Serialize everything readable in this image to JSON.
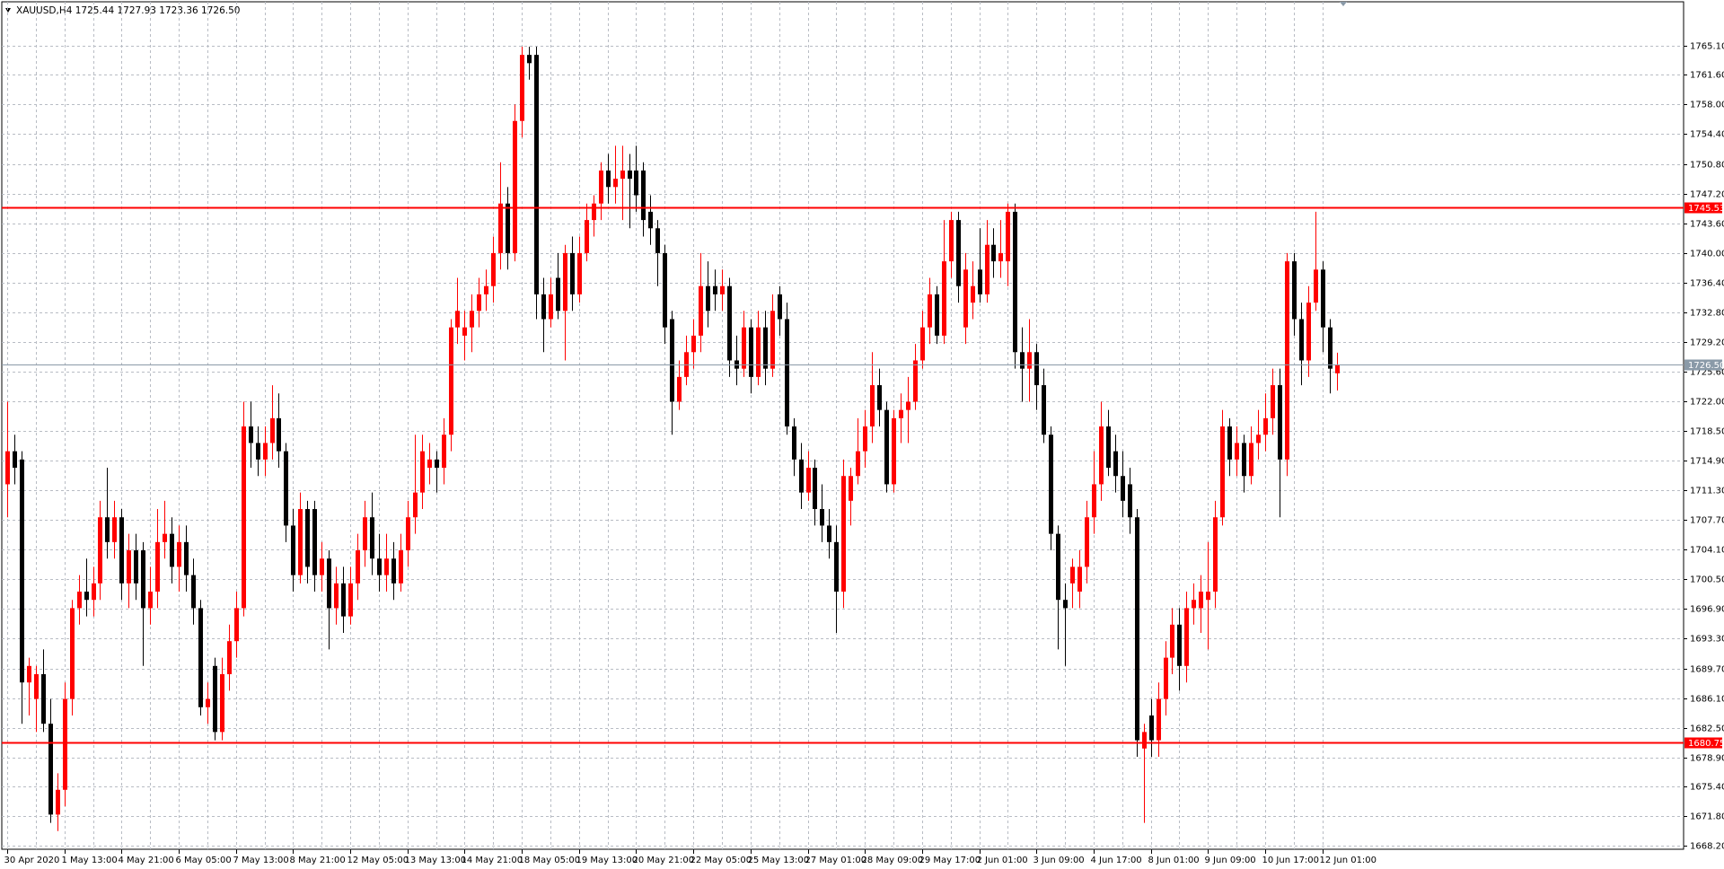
{
  "chart_data": {
    "type": "candlestick",
    "title": "XAUUSD,H4  1725.44 1727.93 1723.36 1726.50",
    "up_color": "#ff0000",
    "down_color": "#000000",
    "grid": true,
    "ylim": [
      1667.8,
      1770.43
    ],
    "yticks": [
      {
        "value": 1765.1,
        "label": "1765.10"
      },
      {
        "value": 1761.6,
        "label": "1761.60"
      },
      {
        "value": 1758,
        "label": "1758.00"
      },
      {
        "value": 1754.4,
        "label": "1754.40"
      },
      {
        "value": 1750.8,
        "label": "1750.80"
      },
      {
        "value": 1747.2,
        "label": "1747.20"
      },
      {
        "value": 1743.6,
        "label": "1743.60"
      },
      {
        "value": 1740,
        "label": "1740.00"
      },
      {
        "value": 1736.4,
        "label": "1736.40"
      },
      {
        "value": 1732.8,
        "label": "1732.80"
      },
      {
        "value": 1729.2,
        "label": "1729.20"
      },
      {
        "value": 1725.6,
        "label": "1725.60"
      },
      {
        "value": 1722,
        "label": "1722.00"
      },
      {
        "value": 1718.5,
        "label": "1718.50"
      },
      {
        "value": 1714.9,
        "label": "1714.90"
      },
      {
        "value": 1711.3,
        "label": "1711.30"
      },
      {
        "value": 1707.7,
        "label": "1707.70"
      },
      {
        "value": 1704.1,
        "label": "1704.10"
      },
      {
        "value": 1700.5,
        "label": "1700.50"
      },
      {
        "value": 1696.9,
        "label": "1696.90"
      },
      {
        "value": 1693.3,
        "label": "1693.30"
      },
      {
        "value": 1689.7,
        "label": "1689.70"
      },
      {
        "value": 1686.1,
        "label": "1686.10"
      },
      {
        "value": 1682.5,
        "label": "1682.50"
      },
      {
        "value": 1678.9,
        "label": "1678.90"
      },
      {
        "value": 1675.4,
        "label": "1675.40"
      },
      {
        "value": 1671.8,
        "label": "1671.80"
      },
      {
        "value": 1668.2,
        "label": "1668.20"
      }
    ],
    "hlines": [
      {
        "value": 1745.53,
        "color": "#ff0000"
      },
      {
        "value": 1680.75,
        "color": "#ff0000"
      },
      {
        "value": 1726.5,
        "label": "1726.50",
        "color": "#8a9aa8"
      }
    ],
    "categories": [
      "30 Apr 2020",
      null,
      null,
      null,
      null,
      null,
      null,
      null,
      "1 May 13:00",
      null,
      null,
      null,
      null,
      null,
      null,
      null,
      "4 May 21:00",
      null,
      null,
      null,
      null,
      null,
      null,
      null,
      "6 May 05:00",
      null,
      null,
      null,
      null,
      null,
      null,
      null,
      "7 May 13:00",
      null,
      null,
      null,
      null,
      null,
      null,
      null,
      "8 May 21:00",
      null,
      null,
      null,
      null,
      null,
      null,
      null,
      "12 May 05:00",
      null,
      null,
      null,
      null,
      null,
      null,
      null,
      "13 May 13:00",
      null,
      null,
      null,
      null,
      null,
      null,
      null,
      "14 May 21:00",
      null,
      null,
      null,
      null,
      null,
      null,
      null,
      "18 May 05:00",
      null,
      null,
      null,
      null,
      null,
      null,
      null,
      "19 May 13:00",
      null,
      null,
      null,
      null,
      null,
      null,
      null,
      "20 May 21:00",
      null,
      null,
      null,
      null,
      null,
      null,
      null,
      "22 May 05:00",
      null,
      null,
      null,
      null,
      null,
      null,
      null,
      "25 May 13:00",
      null,
      null,
      null,
      null,
      null,
      null,
      null,
      "27 May 01:00",
      null,
      null,
      null,
      null,
      null,
      null,
      null,
      "28 May 09:00",
      null,
      null,
      null,
      null,
      null,
      null,
      null,
      "29 May 17:00",
      null,
      null,
      null,
      null,
      null,
      null,
      null,
      "2 Jun 01:00",
      null,
      null,
      null,
      null,
      null,
      null,
      null,
      "3 Jun 09:00",
      null,
      null,
      null,
      null,
      null,
      null,
      null,
      "4 Jun 17:00",
      null,
      null,
      null,
      null,
      null,
      null,
      null,
      "8 Jun 01:00",
      null,
      null,
      null,
      null,
      null,
      null,
      null,
      "9 Jun 09:00",
      null,
      null,
      null,
      null,
      null,
      null,
      null,
      "10 Jun 17:00",
      null,
      null,
      null,
      null,
      null,
      null,
      null,
      "12 Jun 01:00",
      null,
      null
    ],
    "ohlc": [
      [
        1712,
        1722,
        1708,
        1716
      ],
      [
        1716,
        1718,
        1712,
        1714
      ],
      [
        1715,
        1716,
        1683,
        1688
      ],
      [
        1688,
        1691,
        1684,
        1690
      ],
      [
        1686,
        1690,
        1682,
        1689
      ],
      [
        1689,
        1692,
        1682,
        1683
      ],
      [
        1683,
        1686,
        1671,
        1672
      ],
      [
        1672,
        1677,
        1670,
        1675
      ],
      [
        1675,
        1688,
        1673,
        1686
      ],
      [
        1686,
        1698,
        1684,
        1697
      ],
      [
        1697,
        1701,
        1695,
        1699
      ],
      [
        1699,
        1703,
        1696,
        1698
      ],
      [
        1698,
        1702,
        1696,
        1700
      ],
      [
        1700,
        1710,
        1698,
        1708
      ],
      [
        1708,
        1714,
        1703,
        1705
      ],
      [
        1705,
        1710,
        1703,
        1708
      ],
      [
        1708,
        1709,
        1698,
        1700
      ],
      [
        1700,
        1706,
        1697,
        1704
      ],
      [
        1704,
        1706,
        1698,
        1700
      ],
      [
        1704,
        1705,
        1690,
        1697
      ],
      [
        1697,
        1702,
        1695,
        1699
      ],
      [
        1699,
        1709,
        1697,
        1705
      ],
      [
        1705,
        1710,
        1703,
        1706
      ],
      [
        1706,
        1708,
        1700,
        1702
      ],
      [
        1702,
        1707,
        1699,
        1705
      ],
      [
        1705,
        1707,
        1699,
        1701
      ],
      [
        1701,
        1703,
        1695,
        1697
      ],
      [
        1697,
        1698,
        1684,
        1685
      ],
      [
        1685,
        1688,
        1683,
        1686
      ],
      [
        1690,
        1691,
        1681,
        1682
      ],
      [
        1682,
        1691,
        1681,
        1689
      ],
      [
        1689,
        1695,
        1687,
        1693
      ],
      [
        1693,
        1699,
        1691,
        1697
      ],
      [
        1697,
        1722,
        1696,
        1719
      ],
      [
        1719,
        1722,
        1714,
        1717
      ],
      [
        1717,
        1719,
        1713,
        1715
      ],
      [
        1715,
        1719,
        1713,
        1717
      ],
      [
        1717,
        1724,
        1715,
        1720
      ],
      [
        1720,
        1723,
        1714,
        1716
      ],
      [
        1716,
        1717,
        1705,
        1707
      ],
      [
        1707,
        1709,
        1699,
        1701
      ],
      [
        1701,
        1711,
        1700,
        1709
      ],
      [
        1709,
        1710,
        1700,
        1702
      ],
      [
        1709,
        1710,
        1699,
        1701
      ],
      [
        1701,
        1705,
        1699,
        1703
      ],
      [
        1703,
        1704,
        1692,
        1697
      ],
      [
        1697,
        1702,
        1695,
        1700
      ],
      [
        1700,
        1702,
        1694,
        1696
      ],
      [
        1696,
        1702,
        1695,
        1700
      ],
      [
        1700,
        1706,
        1698,
        1704
      ],
      [
        1704,
        1710,
        1702,
        1708
      ],
      [
        1708,
        1711,
        1701,
        1703
      ],
      [
        1703,
        1706,
        1699,
        1701
      ],
      [
        1701,
        1706,
        1699,
        1703
      ],
      [
        1703,
        1705,
        1698,
        1700
      ],
      [
        1700,
        1706,
        1699,
        1704
      ],
      [
        1704,
        1710,
        1702,
        1708
      ],
      [
        1708,
        1718,
        1706,
        1711
      ],
      [
        1711,
        1718,
        1709,
        1716
      ],
      [
        1714,
        1717,
        1712,
        1715
      ],
      [
        1715,
        1716,
        1711,
        1714
      ],
      [
        1714,
        1720,
        1712,
        1718
      ],
      [
        1718,
        1732,
        1716,
        1731
      ],
      [
        1731,
        1737,
        1729,
        1733
      ],
      [
        1730,
        1733,
        1727,
        1731
      ],
      [
        1731,
        1735,
        1728,
        1733
      ],
      [
        1733,
        1737,
        1731,
        1735
      ],
      [
        1735,
        1738,
        1733,
        1736
      ],
      [
        1736,
        1742,
        1734,
        1740
      ],
      [
        1740,
        1751,
        1738,
        1746
      ],
      [
        1746,
        1748,
        1738,
        1740
      ],
      [
        1740,
        1758,
        1739,
        1756
      ],
      [
        1756,
        1765,
        1754,
        1764
      ],
      [
        1764,
        1765,
        1761,
        1763
      ],
      [
        1764,
        1765,
        1732,
        1735
      ],
      [
        1735,
        1737,
        1728,
        1732
      ],
      [
        1732,
        1737,
        1731,
        1735
      ],
      [
        1737,
        1740,
        1732,
        1733
      ],
      [
        1733,
        1741,
        1727,
        1740
      ],
      [
        1740,
        1742,
        1733,
        1735
      ],
      [
        1735,
        1742,
        1734,
        1740
      ],
      [
        1740,
        1746,
        1739,
        1744
      ],
      [
        1744,
        1747,
        1742,
        1746
      ],
      [
        1746,
        1751,
        1744,
        1750
      ],
      [
        1750,
        1752,
        1746,
        1748
      ],
      [
        1748,
        1753,
        1746,
        1749
      ],
      [
        1749,
        1753,
        1744,
        1750
      ],
      [
        1750,
        1752,
        1743,
        1749
      ],
      [
        1750,
        1753,
        1745,
        1747
      ],
      [
        1750,
        1751,
        1742,
        1744
      ],
      [
        1745,
        1747,
        1741,
        1743
      ],
      [
        1743,
        1744,
        1736,
        1740
      ],
      [
        1740,
        1741,
        1729,
        1731
      ],
      [
        1732,
        1733,
        1718,
        1722
      ],
      [
        1722,
        1727,
        1721,
        1725
      ],
      [
        1725,
        1730,
        1724,
        1728
      ],
      [
        1728,
        1732,
        1726,
        1730
      ],
      [
        1730,
        1740,
        1728,
        1736
      ],
      [
        1736,
        1739,
        1731,
        1733
      ],
      [
        1736,
        1738,
        1733,
        1735
      ],
      [
        1735,
        1738,
        1733,
        1736
      ],
      [
        1736,
        1737,
        1725,
        1727
      ],
      [
        1727,
        1730,
        1724,
        1726
      ],
      [
        1726,
        1733,
        1725,
        1731
      ],
      [
        1731,
        1732,
        1723,
        1725
      ],
      [
        1725,
        1733,
        1724,
        1731
      ],
      [
        1731,
        1733,
        1724,
        1726
      ],
      [
        1726,
        1735,
        1725,
        1733
      ],
      [
        1735,
        1736,
        1730,
        1732
      ],
      [
        1732,
        1734,
        1718,
        1719
      ],
      [
        1719,
        1720,
        1713,
        1715
      ],
      [
        1715,
        1717,
        1709,
        1711
      ],
      [
        1711,
        1716,
        1710,
        1714
      ],
      [
        1714,
        1715,
        1707,
        1709
      ],
      [
        1709,
        1712,
        1705,
        1707
      ],
      [
        1707,
        1709,
        1703,
        1705
      ],
      [
        1705,
        1707,
        1694,
        1699
      ],
      [
        1699,
        1715,
        1697,
        1713
      ],
      [
        1710,
        1714,
        1707,
        1713
      ],
      [
        1713,
        1720,
        1712,
        1716
      ],
      [
        1716,
        1721,
        1714,
        1719
      ],
      [
        1719,
        1728,
        1717,
        1724
      ],
      [
        1724,
        1726,
        1719,
        1721
      ],
      [
        1721,
        1722,
        1711,
        1712
      ],
      [
        1712,
        1721,
        1711,
        1720
      ],
      [
        1720,
        1723,
        1717,
        1721
      ],
      [
        1721,
        1725,
        1717,
        1722
      ],
      [
        1722,
        1729,
        1721,
        1727
      ],
      [
        1727,
        1733,
        1726,
        1731
      ],
      [
        1731,
        1737,
        1729,
        1735
      ],
      [
        1735,
        1736,
        1729,
        1730
      ],
      [
        1730,
        1744,
        1729,
        1739
      ],
      [
        1739,
        1745,
        1737,
        1744
      ],
      [
        1744,
        1745,
        1734,
        1736
      ],
      [
        1731,
        1740,
        1729,
        1738
      ],
      [
        1734,
        1739,
        1732,
        1736
      ],
      [
        1738,
        1743,
        1734,
        1735
      ],
      [
        1735,
        1744,
        1734,
        1741
      ],
      [
        1741,
        1743,
        1737,
        1739
      ],
      [
        1739,
        1744,
        1737,
        1740
      ],
      [
        1739,
        1746,
        1736,
        1745
      ],
      [
        1745,
        1746,
        1726,
        1728
      ],
      [
        1728,
        1731,
        1722,
        1726
      ],
      [
        1726,
        1732,
        1722,
        1728
      ],
      [
        1728,
        1729,
        1721,
        1724
      ],
      [
        1724,
        1726,
        1717,
        1718
      ],
      [
        1718,
        1719,
        1704,
        1706
      ],
      [
        1706,
        1707,
        1692,
        1698
      ],
      [
        1698,
        1700,
        1690,
        1697
      ],
      [
        1700,
        1703,
        1697,
        1702
      ],
      [
        1699,
        1704,
        1697,
        1702
      ],
      [
        1702,
        1710,
        1700,
        1708
      ],
      [
        1708,
        1716,
        1706,
        1712
      ],
      [
        1712,
        1722,
        1710,
        1719
      ],
      [
        1719,
        1721,
        1713,
        1714
      ],
      [
        1716,
        1718,
        1711,
        1713
      ],
      [
        1713,
        1716,
        1708,
        1710
      ],
      [
        1712,
        1714,
        1706,
        1708
      ],
      [
        1708,
        1709,
        1679,
        1681
      ],
      [
        1680,
        1683,
        1671,
        1682
      ],
      [
        1684,
        1686,
        1679,
        1681
      ],
      [
        1681,
        1688,
        1679,
        1686
      ],
      [
        1686,
        1693,
        1684,
        1691
      ],
      [
        1691,
        1697,
        1689,
        1695
      ],
      [
        1695,
        1697,
        1687,
        1690
      ],
      [
        1690,
        1699,
        1688,
        1697
      ],
      [
        1697,
        1700,
        1695,
        1698
      ],
      [
        1697,
        1701,
        1694,
        1699
      ],
      [
        1698,
        1705,
        1692,
        1699
      ],
      [
        1699,
        1710,
        1697,
        1708
      ],
      [
        1708,
        1721,
        1707,
        1719
      ],
      [
        1719,
        1720,
        1713,
        1715
      ],
      [
        1715,
        1719,
        1713,
        1717
      ],
      [
        1717,
        1718,
        1711,
        1713
      ],
      [
        1713,
        1719,
        1712,
        1717
      ],
      [
        1717,
        1721,
        1715,
        1718
      ],
      [
        1718,
        1723,
        1716,
        1720
      ],
      [
        1720,
        1726,
        1718,
        1724
      ],
      [
        1724,
        1726,
        1708,
        1715
      ],
      [
        1715,
        1740,
        1713,
        1739
      ],
      [
        1739,
        1740,
        1730,
        1732
      ],
      [
        1732,
        1734,
        1724,
        1727
      ],
      [
        1727,
        1736,
        1725,
        1734
      ],
      [
        1734,
        1745,
        1733,
        1738
      ],
      [
        1738,
        1739,
        1728,
        1731
      ],
      [
        1731,
        1732,
        1723,
        1726
      ],
      [
        1725.44,
        1727.93,
        1723.36,
        1726.5
      ]
    ]
  }
}
